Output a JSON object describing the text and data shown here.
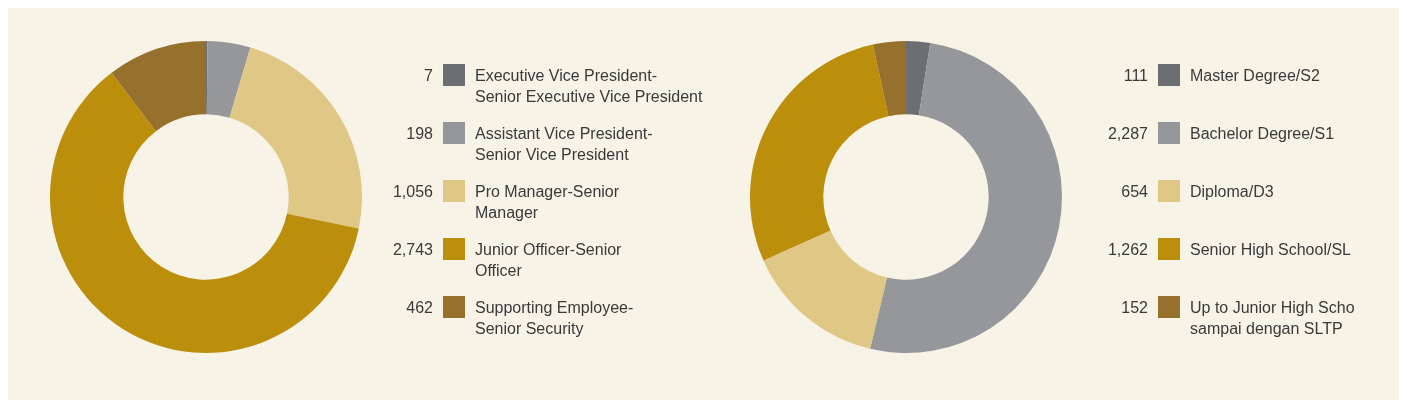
{
  "chart_data": [
    {
      "type": "donut",
      "categories": [
        "Executive Vice President-\nSenior Executive Vice President",
        "Assistant Vice President-\nSenior Vice President",
        "Pro Manager-Senior\nManager",
        "Junior Officer-Senior\nOfficer",
        "Supporting Employee-\nSenior Security"
      ],
      "values": [
        7,
        198,
        1056,
        2743,
        462
      ],
      "value_labels": [
        "7",
        "198",
        "1,056",
        "2,743",
        "462"
      ],
      "colors": [
        "#6d6e71",
        "#96979a",
        "#dfc885",
        "#bb8e0b",
        "#96702d"
      ],
      "legend": "right"
    },
    {
      "type": "donut",
      "categories": [
        "Master Degree/S2",
        "Bachelor Degree/S1",
        "Diploma/D3",
        "Senior High School/SL",
        "Up to Junior High Scho\nsampai dengan SLTP"
      ],
      "values": [
        111,
        2287,
        654,
        1262,
        152
      ],
      "value_labels": [
        "111",
        "2,287",
        "654",
        "1,262",
        "152"
      ],
      "colors": [
        "#6d6e71",
        "#96979a",
        "#dfc885",
        "#bb8e0b",
        "#96702d"
      ],
      "legend": "right"
    }
  ]
}
